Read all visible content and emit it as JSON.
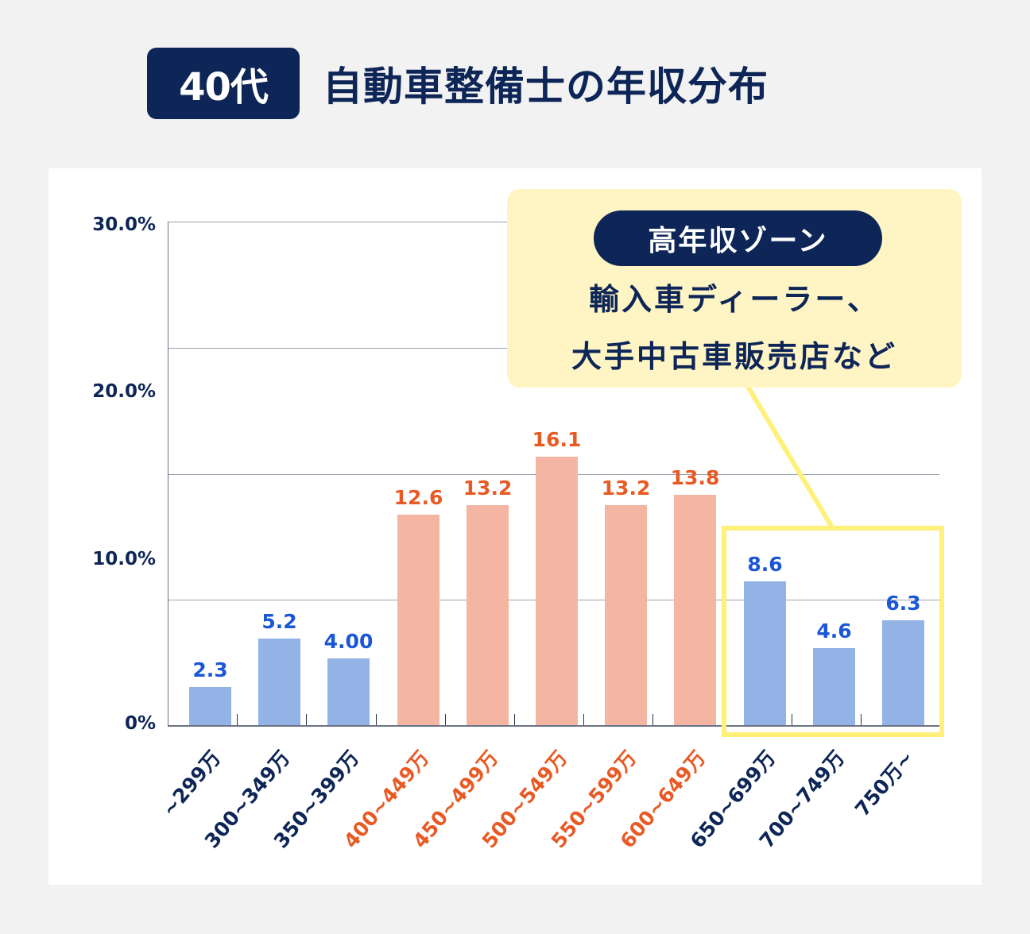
{
  "header": {
    "badge": "40代",
    "title": "自動車整備士の年収分布"
  },
  "colors": {
    "navy": "#0d2557",
    "blue_bar": "#93b3e6",
    "salmon_bar": "#f4b6a2",
    "blue_label": "#1a56d6",
    "orange_label": "#e85a24",
    "highlight_yellow": "#fff07a",
    "callout_bg": "#fff5c4"
  },
  "y_axis": {
    "ticks": [
      "30.0%",
      "20.0%",
      "10.0%",
      "0%"
    ]
  },
  "callout": {
    "pill": "高年収ゾーン",
    "line1": "輸入車ディーラー、",
    "line2": "大手中古車販売店など"
  },
  "chart_data": {
    "type": "bar",
    "title": "40代 自動車整備士の年収分布",
    "xlabel": "",
    "ylabel": "",
    "ylim": [
      0,
      30
    ],
    "y_tick_labels": [
      "0%",
      "10.0%",
      "20.0%",
      "30.0%"
    ],
    "grid": true,
    "categories": [
      "~299万",
      "300~349万",
      "350~399万",
      "400~449万",
      "450~499万",
      "500~549万",
      "550~599万",
      "600~649万",
      "650~699万",
      "700~749万",
      "750万~"
    ],
    "values": [
      2.3,
      5.2,
      4.0,
      12.6,
      13.2,
      16.1,
      13.2,
      13.8,
      8.6,
      4.6,
      6.3
    ],
    "value_labels": [
      "2.3",
      "5.2",
      "4.00",
      "12.6",
      "13.2",
      "16.1",
      "13.2",
      "13.8",
      "8.6",
      "4.6",
      "6.3"
    ],
    "highlight_groups": {
      "middle_income_orange": [
        "400~449万",
        "450~499万",
        "500~549万",
        "550~599万",
        "600~649万"
      ],
      "high_income_zone_boxed": [
        "650~699万",
        "700~749万",
        "750万~"
      ]
    },
    "annotations": [
      "高年収ゾーン",
      "輸入車ディーラー、大手中古車販売店など"
    ]
  }
}
